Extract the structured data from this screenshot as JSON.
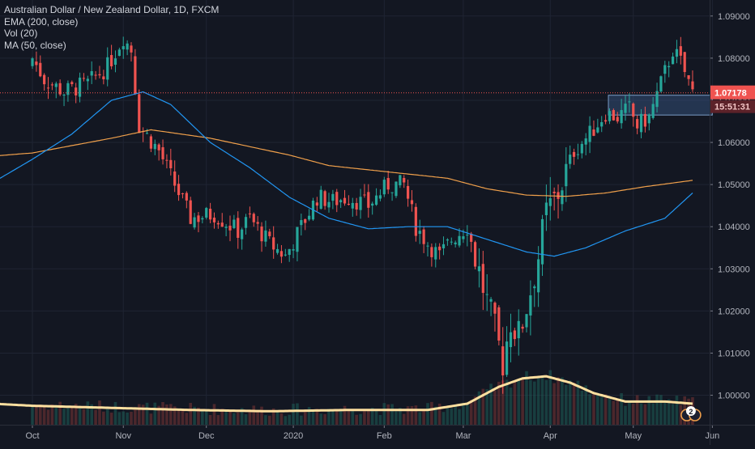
{
  "legend": {
    "title": "Australian Dollar / New Zealand Dollar, 1D, FXCM",
    "indicator1": "EMA (200, close)",
    "indicator2": "Vol (20)",
    "indicator3": "MA (50, close)"
  },
  "price_label": "1.07178",
  "countdown_label": "15:51:31",
  "event_badge": "2",
  "colors": {
    "background": "#131722",
    "up": "#26a69a",
    "down": "#ef5350",
    "ema200": "#f0a04b",
    "ma50": "#2196f3",
    "volume_ma": "#ffe0a0",
    "price_line": "#ef5350",
    "zone_fill": "#3a5a8a"
  },
  "chart_data": {
    "type": "candlestick",
    "title": "Australian Dollar / New Zealand Dollar, 1D, FXCM",
    "x_tick_labels": [
      "Oct",
      "Nov",
      "Dec",
      "2020",
      "Feb",
      "Mar",
      "Apr",
      "May",
      "Jun"
    ],
    "y_tick_labels": [
      "1.09000",
      "1.08000",
      "1.07000",
      "1.06000",
      "1.05000",
      "1.04000",
      "1.03000",
      "1.02000",
      "1.01000",
      "1.00000"
    ],
    "ylim": [
      0.993,
      1.0938
    ],
    "last_price": 1.07178,
    "zone": {
      "from_date": "2020-04-22",
      "to_date": "2020-06-03",
      "low": 1.0665,
      "high": 1.0712
    },
    "month_anchors": [
      [
        "2019-10-01",
        0
      ],
      [
        "2019-11-01",
        23
      ],
      [
        "2019-12-01",
        44
      ],
      [
        "2020-01-01",
        66
      ],
      [
        "2020-02-01",
        89
      ],
      [
        "2020-03-01",
        109
      ],
      [
        "2020-04-01",
        131
      ],
      [
        "2020-05-01",
        152
      ],
      [
        "2020-06-01",
        172
      ]
    ],
    "close_anchors": [
      [
        0,
        1.08
      ],
      [
        3,
        1.075
      ],
      [
        8,
        1.072
      ],
      [
        14,
        1.074
      ],
      [
        19,
        1.078
      ],
      [
        23,
        1.085
      ],
      [
        25,
        1.082
      ],
      [
        27,
        1.064
      ],
      [
        32,
        1.058
      ],
      [
        37,
        1.048
      ],
      [
        40,
        1.042
      ],
      [
        46,
        1.043
      ],
      [
        52,
        1.039
      ],
      [
        55,
        1.042
      ],
      [
        60,
        1.036
      ],
      [
        64,
        1.033
      ],
      [
        68,
        1.04
      ],
      [
        72,
        1.047
      ],
      [
        76,
        1.046
      ],
      [
        80,
        1.047
      ],
      [
        85,
        1.045
      ],
      [
        90,
        1.05
      ],
      [
        94,
        1.05
      ],
      [
        97,
        1.04
      ],
      [
        100,
        1.036
      ],
      [
        103,
        1.033
      ],
      [
        106,
        1.037
      ],
      [
        110,
        1.04
      ],
      [
        115,
        1.022
      ],
      [
        119,
        1.008
      ],
      [
        121,
        1.018
      ],
      [
        123,
        1.014
      ],
      [
        126,
        1.025
      ],
      [
        128,
        1.033
      ],
      [
        130,
        1.043
      ],
      [
        133,
        1.048
      ],
      [
        137,
        1.058
      ],
      [
        141,
        1.062
      ],
      [
        145,
        1.067
      ],
      [
        148,
        1.066
      ],
      [
        151,
        1.068
      ],
      [
        153,
        1.064
      ],
      [
        156,
        1.066
      ],
      [
        159,
        1.074
      ],
      [
        162,
        1.082
      ],
      [
        164,
        1.079
      ],
      [
        167,
        1.072
      ]
    ],
    "ema200_anchors": [
      [
        -20,
        1.056
      ],
      [
        0,
        1.0575
      ],
      [
        20,
        1.061
      ],
      [
        30,
        1.063
      ],
      [
        45,
        1.061
      ],
      [
        65,
        1.057
      ],
      [
        75,
        1.0545
      ],
      [
        90,
        1.053
      ],
      [
        105,
        1.0515
      ],
      [
        115,
        1.049
      ],
      [
        125,
        1.0475
      ],
      [
        135,
        1.0472
      ],
      [
        145,
        1.048
      ],
      [
        155,
        1.0495
      ],
      [
        167,
        1.051
      ]
    ],
    "ma50_anchors": [
      [
        -20,
        1.045
      ],
      [
        0,
        1.056
      ],
      [
        10,
        1.062
      ],
      [
        20,
        1.07
      ],
      [
        28,
        1.072
      ],
      [
        35,
        1.069
      ],
      [
        45,
        1.06
      ],
      [
        55,
        1.054
      ],
      [
        65,
        1.047
      ],
      [
        75,
        1.042
      ],
      [
        85,
        1.0395
      ],
      [
        95,
        1.04
      ],
      [
        105,
        1.04
      ],
      [
        115,
        1.037
      ],
      [
        125,
        1.034
      ],
      [
        132,
        1.033
      ],
      [
        140,
        1.035
      ],
      [
        150,
        1.039
      ],
      [
        160,
        1.042
      ],
      [
        167,
        1.048
      ]
    ],
    "volume_ma_anchors": [
      [
        -20,
        0.9985
      ],
      [
        0,
        0.9975
      ],
      [
        20,
        0.997
      ],
      [
        40,
        0.9965
      ],
      [
        60,
        0.9962
      ],
      [
        80,
        0.9965
      ],
      [
        100,
        0.9965
      ],
      [
        110,
        0.998
      ],
      [
        118,
        1.002
      ],
      [
        124,
        1.004
      ],
      [
        130,
        1.0045
      ],
      [
        136,
        1.003
      ],
      [
        142,
        1.0005
      ],
      [
        150,
        0.9985
      ],
      [
        160,
        0.9985
      ],
      [
        167,
        0.998
      ]
    ],
    "series": [
      {
        "name": "EMA (200, close)"
      },
      {
        "name": "MA (50, close)"
      },
      {
        "name": "Vol (20)"
      }
    ]
  }
}
